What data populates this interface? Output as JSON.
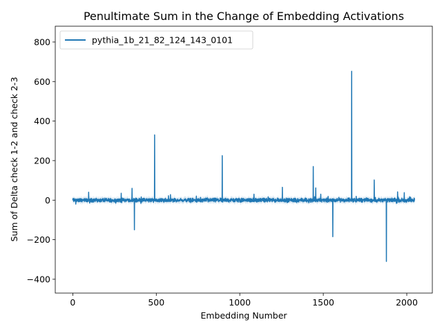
{
  "chart_data": {
    "type": "line",
    "title": "Penultimate Sum in the Change of Embedding Activations",
    "xlabel": "Embedding Number",
    "ylabel": "Sum of Delta check 1-2 and check 2-3",
    "xlim": [
      -105,
      2153
    ],
    "ylim": [
      -470,
      880
    ],
    "x_ticks": [
      0,
      500,
      1000,
      1500,
      2000
    ],
    "y_ticks": [
      -400,
      -200,
      0,
      200,
      400,
      600,
      800
    ],
    "grid": false,
    "legend_position": "upper left",
    "n_points": 2048,
    "series": [
      {
        "name": "pythia_1b_21_82_124_143_0101",
        "color": "#1f77b4",
        "baseline_noise_amplitude": 12,
        "spikes": [
          {
            "x": 18,
            "y": -20
          },
          {
            "x": 95,
            "y": 40
          },
          {
            "x": 290,
            "y": 35
          },
          {
            "x": 355,
            "y": 60
          },
          {
            "x": 369,
            "y": -150
          },
          {
            "x": 490,
            "y": 330
          },
          {
            "x": 585,
            "y": 28
          },
          {
            "x": 895,
            "y": 225
          },
          {
            "x": 1085,
            "y": 30
          },
          {
            "x": 1255,
            "y": 65
          },
          {
            "x": 1440,
            "y": 170
          },
          {
            "x": 1455,
            "y": 62
          },
          {
            "x": 1485,
            "y": 30
          },
          {
            "x": 1557,
            "y": -185
          },
          {
            "x": 1670,
            "y": 652
          },
          {
            "x": 1805,
            "y": 102
          },
          {
            "x": 1878,
            "y": -310
          },
          {
            "x": 1945,
            "y": 42
          },
          {
            "x": 1985,
            "y": 38
          }
        ]
      }
    ]
  }
}
